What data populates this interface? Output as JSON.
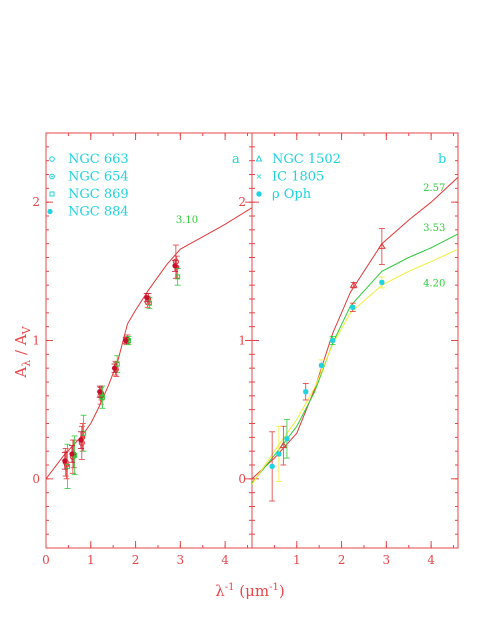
{
  "colors": {
    "frame": "#e8474a",
    "cyan": "#1fd3e0",
    "green": "#2ecc3a",
    "yellow": "#f2ee3a",
    "red": "#e23a3a",
    "dark_red": "#c8102e"
  },
  "ylabel": "Aλ / AV",
  "ylabel_main": "A",
  "ylabel_sub1": "λ",
  "ylabel_slash": " / A",
  "ylabel_sub2": "V",
  "xlabel_main": "λ",
  "xlabel_sup": "-1",
  "xlabel_rest": " (μm",
  "xlabel_sup2": "-1",
  "xlabel_close": ")",
  "chart_data": [
    {
      "type": "scatter",
      "panel_label": "a",
      "xlim": [
        0,
        4.6
      ],
      "ylim": [
        -0.5,
        2.5
      ],
      "xticks": [
        "0",
        "1",
        "2",
        "3",
        "4"
      ],
      "xtick_values": [
        0,
        1,
        2,
        3,
        4
      ],
      "yticks": [
        "0",
        "1",
        "2"
      ],
      "ytick_values": [
        0,
        1,
        2
      ],
      "legend": [
        "NGC 663",
        "NGC 654",
        "NGC 869",
        "NGC 884"
      ],
      "curve_label": "3.10",
      "curve_label_pos": [
        2.9,
        1.85
      ],
      "curve": {
        "name": "3.10",
        "x": [
          0,
          0.4,
          0.8,
          1.0,
          1.2,
          1.4,
          1.6,
          1.82,
          2.0,
          2.3,
          2.7,
          3.0,
          3.5,
          4.0,
          4.6
        ],
        "y": [
          0,
          0.17,
          0.31,
          0.4,
          0.53,
          0.68,
          0.85,
          1.12,
          1.22,
          1.37,
          1.55,
          1.66,
          1.75,
          1.84,
          1.96
        ]
      },
      "series": [
        {
          "name": "NGC 663",
          "x": [
            0.44,
            0.6,
            0.8,
            1.22,
            1.55,
            1.8,
            2.27,
            2.9
          ],
          "y": [
            0.12,
            0.16,
            0.26,
            0.6,
            0.8,
            1.0,
            1.28,
            1.57
          ],
          "err": [
            0.1,
            0.12,
            0.12,
            0.06,
            0.05,
            0.03,
            0.04,
            0.12
          ]
        },
        {
          "name": "NGC 654",
          "x": [
            0.46,
            0.62,
            0.82,
            1.24,
            1.57,
            1.82,
            2.29,
            2.92
          ],
          "y": [
            0.1,
            0.18,
            0.3,
            0.62,
            0.79,
            1.01,
            1.3,
            1.53
          ],
          "err": [
            0.1,
            0.1,
            0.1,
            0.05,
            0.05,
            0.03,
            0.04,
            0.08
          ]
        },
        {
          "name": "NGC 869",
          "x": [
            0.48,
            0.64,
            0.84,
            1.26,
            1.59,
            1.84,
            2.31,
            2.94
          ],
          "y": [
            0.09,
            0.17,
            0.33,
            0.59,
            0.83,
            1.0,
            1.27,
            1.46
          ],
          "err": [
            0.16,
            0.14,
            0.13,
            0.08,
            0.06,
            0.03,
            0.04,
            0.06
          ]
        },
        {
          "name": "NGC 884",
          "x": [
            0.42,
            0.58,
            0.78,
            1.2,
            1.53,
            1.78,
            2.25,
            2.88
          ],
          "y": [
            0.13,
            0.18,
            0.28,
            0.63,
            0.8,
            1.0,
            1.31,
            1.54
          ],
          "err": [
            0.06,
            0.06,
            0.06,
            0.04,
            0.03,
            0.02,
            0.03,
            0.04
          ]
        }
      ]
    },
    {
      "type": "scatter",
      "panel_label": "b",
      "xlim": [
        0,
        4.6
      ],
      "ylim": [
        -0.5,
        2.5
      ],
      "xticks": [
        "1",
        "2",
        "3",
        "4"
      ],
      "xtick_values": [
        1,
        2,
        3,
        4
      ],
      "yticks": [
        "0",
        "1",
        "2"
      ],
      "ytick_values": [
        0,
        1,
        2
      ],
      "legend": [
        "NGC 1502",
        "IC 1805",
        "ρ Oph"
      ],
      "curves": [
        {
          "name": "2.57",
          "label_pos": [
            3.82,
            2.08
          ],
          "x": [
            0,
            0.5,
            1.0,
            1.4,
            1.8,
            2.2,
            2.9,
            3.5,
            4.0,
            4.6
          ],
          "y": [
            0,
            0.15,
            0.33,
            0.65,
            1.05,
            1.35,
            1.7,
            1.87,
            2.0,
            2.18
          ]
        },
        {
          "name": "3.53",
          "label_pos": [
            3.82,
            1.79
          ],
          "x": [
            0,
            0.5,
            1.0,
            1.4,
            1.8,
            2.2,
            2.9,
            3.5,
            4.0,
            4.6
          ],
          "y": [
            -0.03,
            0.17,
            0.38,
            0.63,
            0.98,
            1.25,
            1.5,
            1.6,
            1.67,
            1.77
          ]
        },
        {
          "name": "4.20",
          "label_pos": [
            3.82,
            1.39
          ],
          "x": [
            0,
            0.5,
            1.0,
            1.4,
            1.8,
            2.2,
            2.9,
            3.5,
            4.0,
            4.6
          ],
          "y": [
            -0.04,
            0.2,
            0.43,
            0.66,
            0.97,
            1.2,
            1.4,
            1.5,
            1.57,
            1.66
          ]
        }
      ],
      "series": [
        {
          "name": "NGC 1502",
          "x": [
            0.7,
            2.27,
            2.9
          ],
          "y": [
            0.24,
            1.4,
            1.68
          ],
          "err": [
            0.14,
            0.02,
            0.13
          ]
        },
        {
          "name": "IC 1805",
          "x": [
            0.45,
            0.6,
            0.78,
            1.2,
            1.55,
            1.8,
            2.25,
            2.9
          ],
          "y": [
            0.09,
            0.18,
            0.29,
            0.63,
            0.82,
            1.0,
            1.24,
            1.42
          ],
          "err": [
            0.25,
            0.2,
            0.14,
            0.06,
            0.04,
            0.03,
            0.03,
            0.04
          ]
        },
        {
          "name": "ρ Oph",
          "x": [
            0.45,
            0.6,
            0.78,
            1.2,
            1.55,
            1.8,
            2.25,
            2.9
          ],
          "y": [
            0.09,
            0.18,
            0.29,
            0.63,
            0.82,
            1.0,
            1.24,
            1.42
          ],
          "err": [
            0,
            0,
            0,
            0,
            0,
            0,
            0,
            0
          ]
        }
      ]
    }
  ]
}
